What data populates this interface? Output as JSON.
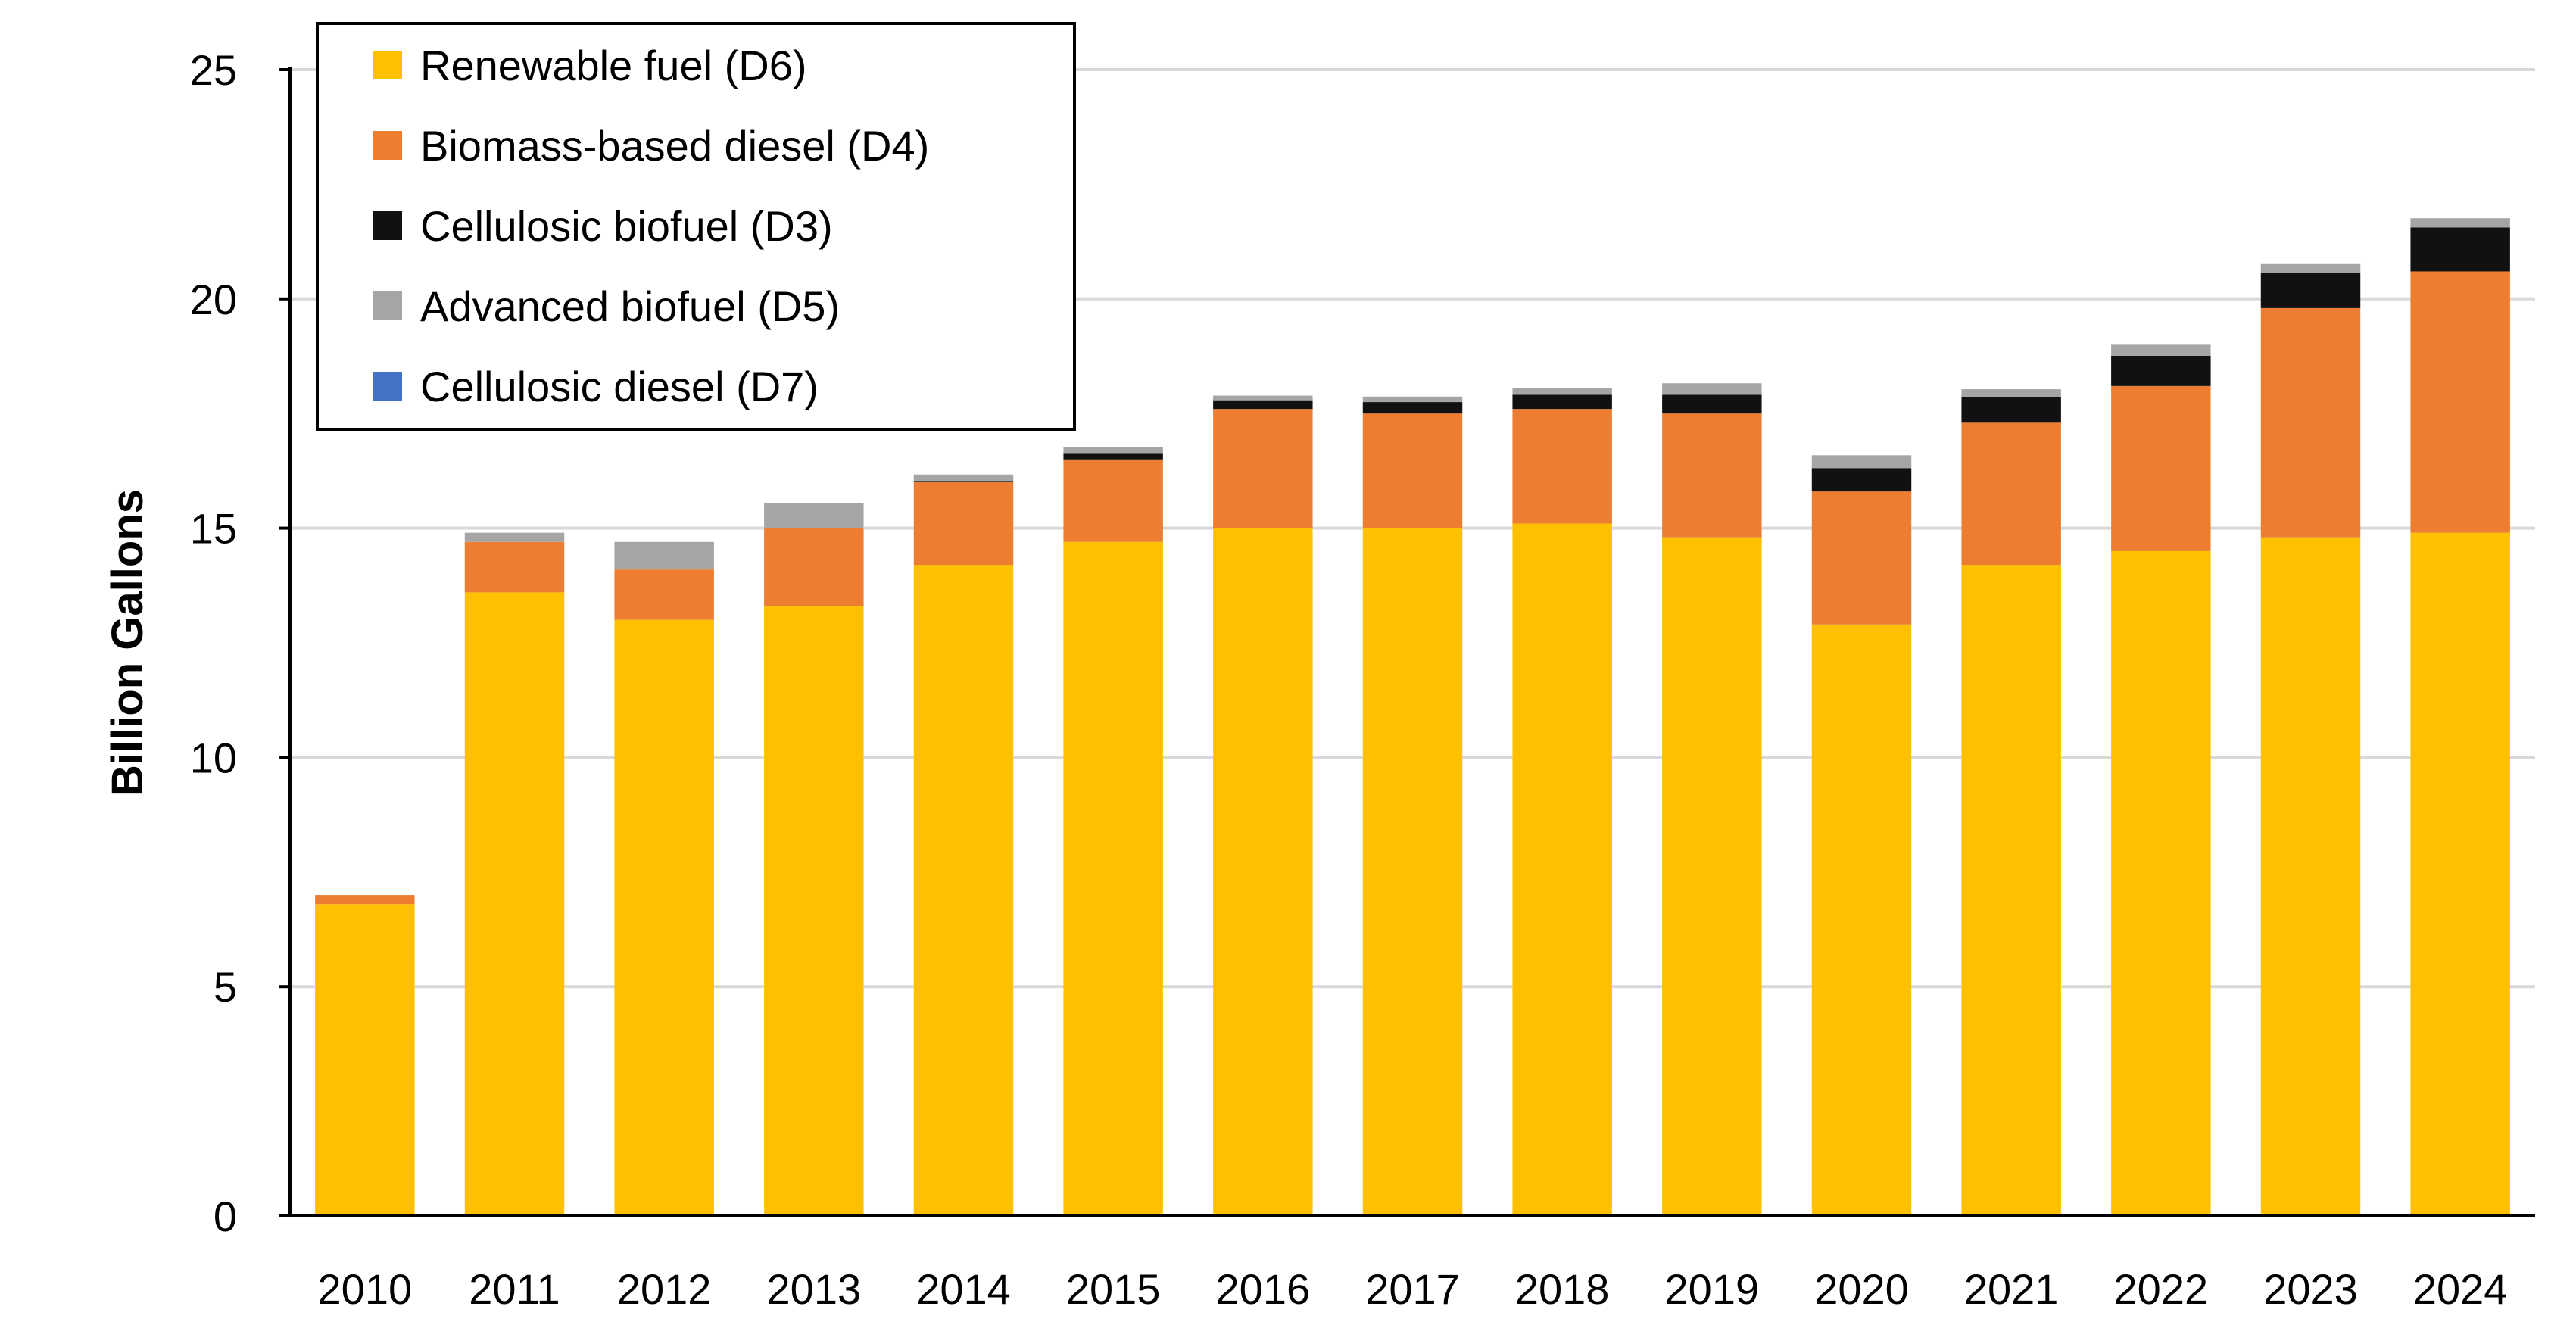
{
  "chart_data": {
    "type": "bar",
    "stacked": true,
    "title": "",
    "xlabel": "",
    "ylabel": "Billion Gallons",
    "ylim": [
      0,
      25
    ],
    "yticks": [
      0,
      5,
      10,
      15,
      20,
      25
    ],
    "grid": "horizontal",
    "legend_position": "top-left",
    "categories": [
      "2010",
      "2011",
      "2012",
      "2013",
      "2014",
      "2015",
      "2016",
      "2017",
      "2018",
      "2019",
      "2020",
      "2021",
      "2022",
      "2023",
      "2024"
    ],
    "series": [
      {
        "name": "Renewable fuel (D6)",
        "color": "#FFC000",
        "values": [
          6.8,
          13.6,
          13.0,
          13.3,
          14.2,
          14.7,
          15.0,
          15.0,
          15.1,
          14.8,
          12.9,
          14.2,
          14.5,
          14.8,
          14.9
        ]
      },
      {
        "name": "Biomass-based diesel (D4)",
        "color": "#ED7D31",
        "values": [
          0.2,
          1.1,
          1.1,
          1.7,
          1.8,
          1.8,
          2.6,
          2.5,
          2.5,
          2.7,
          2.9,
          3.1,
          3.6,
          5.0,
          5.7
        ]
      },
      {
        "name": "Cellulosic biofuel (D3)",
        "color": "#111111",
        "values": [
          0.0,
          0.0,
          0.0,
          0.0,
          0.03,
          0.14,
          0.19,
          0.25,
          0.31,
          0.41,
          0.51,
          0.56,
          0.66,
          0.76,
          0.96
        ]
      },
      {
        "name": "Advanced biofuel (D5)",
        "color": "#A5A5A5",
        "values": [
          0.0,
          0.2,
          0.6,
          0.55,
          0.14,
          0.13,
          0.1,
          0.12,
          0.14,
          0.25,
          0.28,
          0.17,
          0.24,
          0.2,
          0.2
        ]
      },
      {
        "name": "Cellulosic diesel (D7)",
        "color": "#4472C4",
        "values": [
          0,
          0,
          0,
          0,
          0,
          0,
          0,
          0,
          0,
          0,
          0,
          0,
          0,
          0,
          0
        ]
      }
    ]
  }
}
